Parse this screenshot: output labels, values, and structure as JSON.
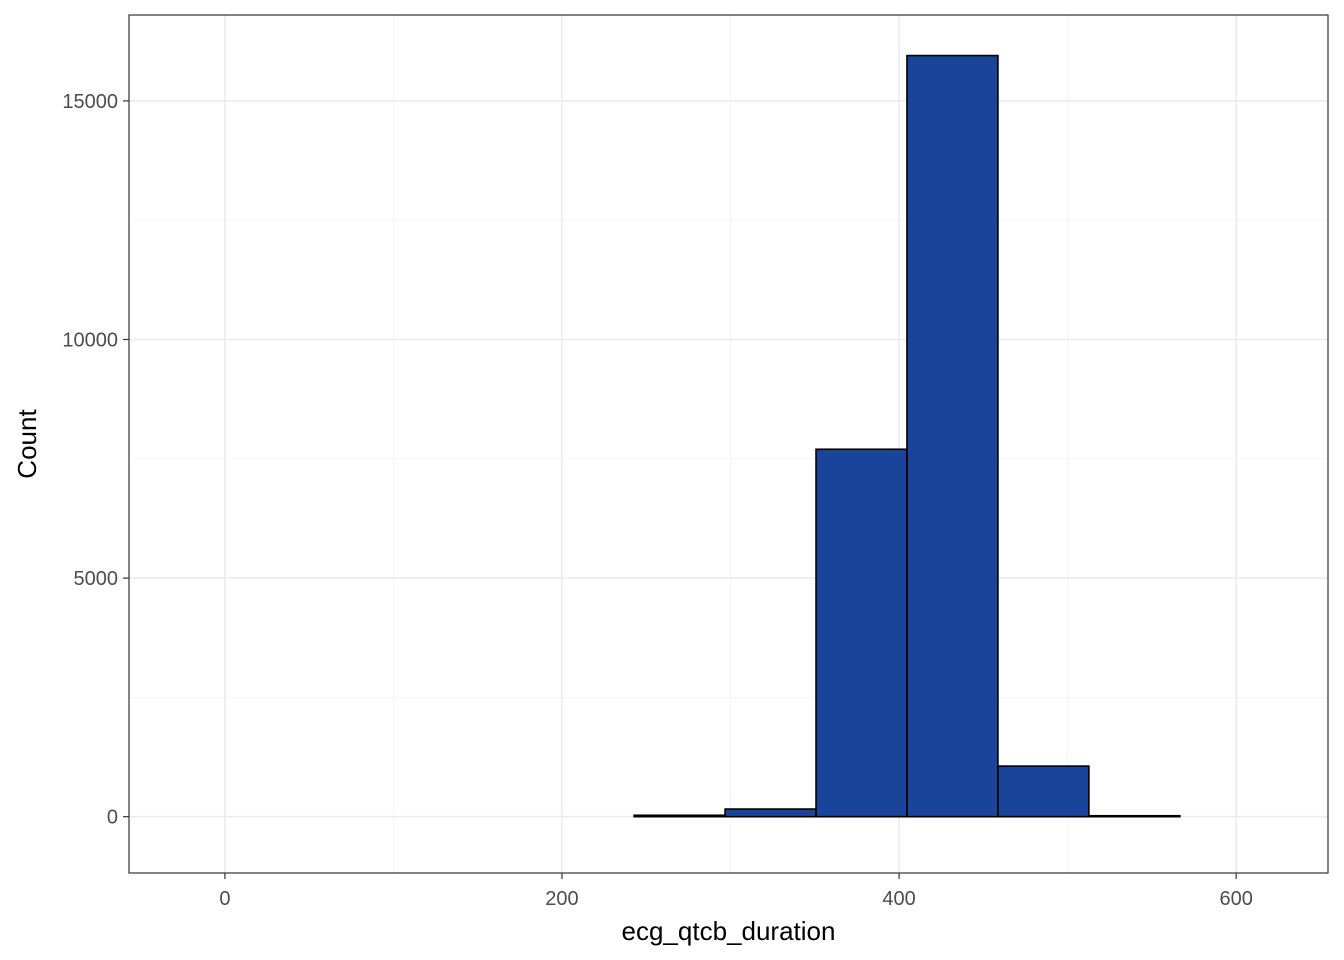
{
  "chart_data": {
    "type": "bar",
    "subtype": "histogram",
    "xlabel": "ecg_qtcb_duration",
    "ylabel": "Count",
    "xlim": [
      -56.9,
      654.5
    ],
    "ylim": [
      -1180,
      16800
    ],
    "x_ticks": [
      0,
      200,
      400,
      600
    ],
    "y_ticks": [
      0,
      5000,
      10000,
      15000
    ],
    "x_minor": [
      100,
      300,
      500
    ],
    "y_minor": [
      2500,
      7500,
      12500
    ],
    "grid": true,
    "bin_width": 53.96,
    "bins": [
      {
        "x0": -26.98,
        "x1": 26.98,
        "count": 0
      },
      {
        "x0": 26.98,
        "x1": 80.94,
        "count": 0
      },
      {
        "x0": 80.94,
        "x1": 134.9,
        "count": 0
      },
      {
        "x0": 134.9,
        "x1": 188.86,
        "count": 0
      },
      {
        "x0": 188.86,
        "x1": 242.82,
        "count": 0
      },
      {
        "x0": 242.82,
        "x1": 296.78,
        "count": 30
      },
      {
        "x0": 296.78,
        "x1": 350.74,
        "count": 160
      },
      {
        "x0": 350.74,
        "x1": 404.7,
        "count": 7700
      },
      {
        "x0": 404.7,
        "x1": 458.66,
        "count": 15950
      },
      {
        "x0": 458.66,
        "x1": 512.62,
        "count": 1060
      },
      {
        "x0": 512.62,
        "x1": 566.58,
        "count": 20
      },
      {
        "x0": 566.58,
        "x1": 620.54,
        "count": 0
      }
    ],
    "colors": {
      "bar_fill": "#1a4499",
      "bar_stroke": "#000000",
      "grid_major": "#ebebeb",
      "grid_minor": "#f5f5f5",
      "panel_border": "#333333"
    }
  }
}
